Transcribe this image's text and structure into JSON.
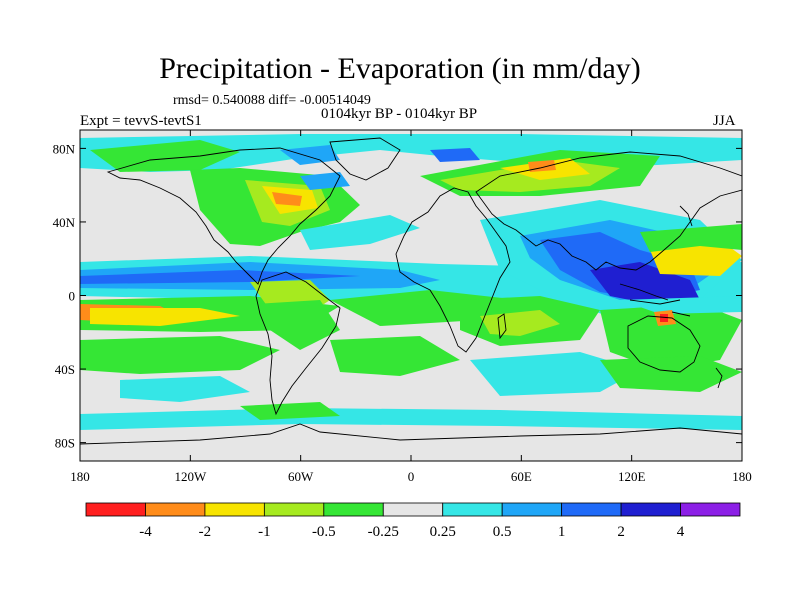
{
  "header": {
    "title": "Precipitation - Evaporation (in mm/day)",
    "stats": "rmsd= 0.540088 diff= -0.00514049",
    "period": "0104kyr BP - 0104kyr BP",
    "experiment": "Expt = tevvS-tevtS1",
    "season": "JJA"
  },
  "axes": {
    "lat_labels": [
      "80N",
      "40N",
      "0",
      "40S",
      "80S"
    ],
    "lat_values": [
      80,
      40,
      0,
      -40,
      -80
    ],
    "lon_labels": [
      "180",
      "120W",
      "60W",
      "0",
      "60E",
      "120E",
      "180"
    ],
    "lon_values": [
      -180,
      -120,
      -60,
      0,
      60,
      120,
      180
    ]
  },
  "colorbar": {
    "colors": [
      "#ff1f1f",
      "#ff8c1a",
      "#f7e400",
      "#a6ea1f",
      "#35e635",
      "#e6e6e6",
      "#35e6e6",
      "#1fa6f7",
      "#1f6af7",
      "#1f1fd1",
      "#8c1fe6"
    ],
    "labels": [
      "-4",
      "-2",
      "-1",
      "-0.5",
      "-0.25",
      "0.25",
      "0.5",
      "1",
      "2",
      "4"
    ]
  },
  "colors": {
    "background_field": "#e6e6e6",
    "coastline": "#000000"
  }
}
